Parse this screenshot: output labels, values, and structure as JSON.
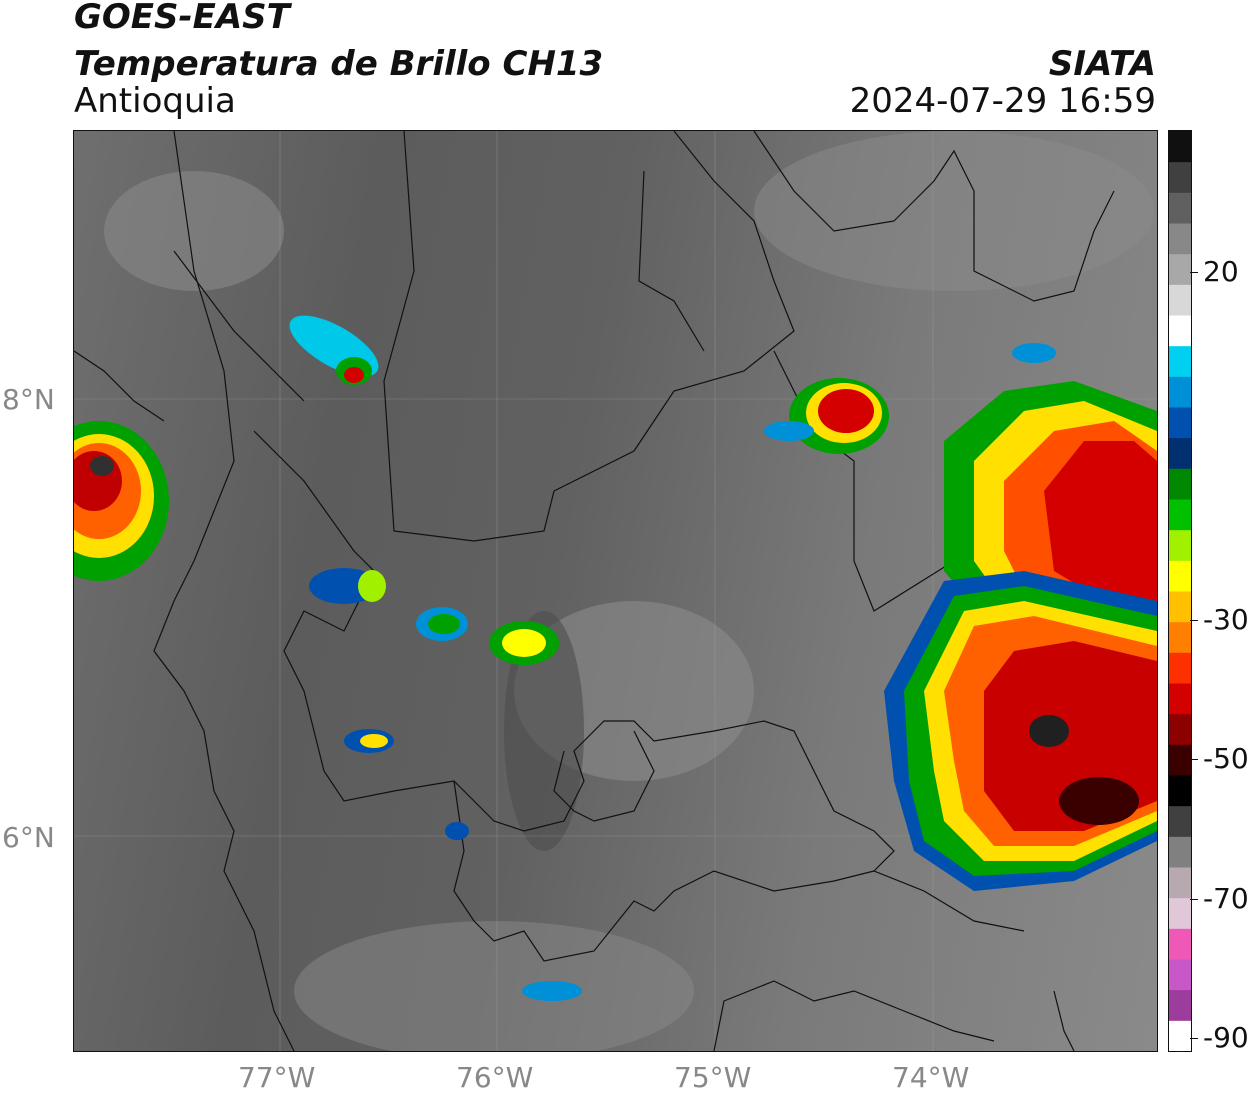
{
  "header": {
    "title_line1": "GOES-EAST",
    "title_line2": "Temperatura de Brillo CH13",
    "region": "Antioquia",
    "organization": "SIATA",
    "timestamp": "2024-07-29 16:59"
  },
  "map": {
    "lat_labels": [
      "8°N",
      "6°N"
    ],
    "lon_labels": [
      "77°W",
      "76°W",
      "75°W",
      "74°W"
    ]
  },
  "colorbar": {
    "labels": [
      "20",
      "-30",
      "-50",
      "-70",
      "-90"
    ],
    "colors": [
      "#ffffff",
      "#9c3c9c",
      "#c858c8",
      "#f058b8",
      "#e0c8d8",
      "#b8a8b0",
      "#808080",
      "#404040",
      "#000000",
      "#3a0000",
      "#8c0000",
      "#d40000",
      "#ff3000",
      "#ff8000",
      "#ffc000",
      "#ffff00",
      "#a0f000",
      "#00c000",
      "#008800",
      "#003070",
      "#0050b0",
      "#0090d8",
      "#00d0f0",
      "#ffffff",
      "#d8d8d8",
      "#a8a8a8",
      "#888888",
      "#606060",
      "#404040",
      "#101010"
    ]
  }
}
